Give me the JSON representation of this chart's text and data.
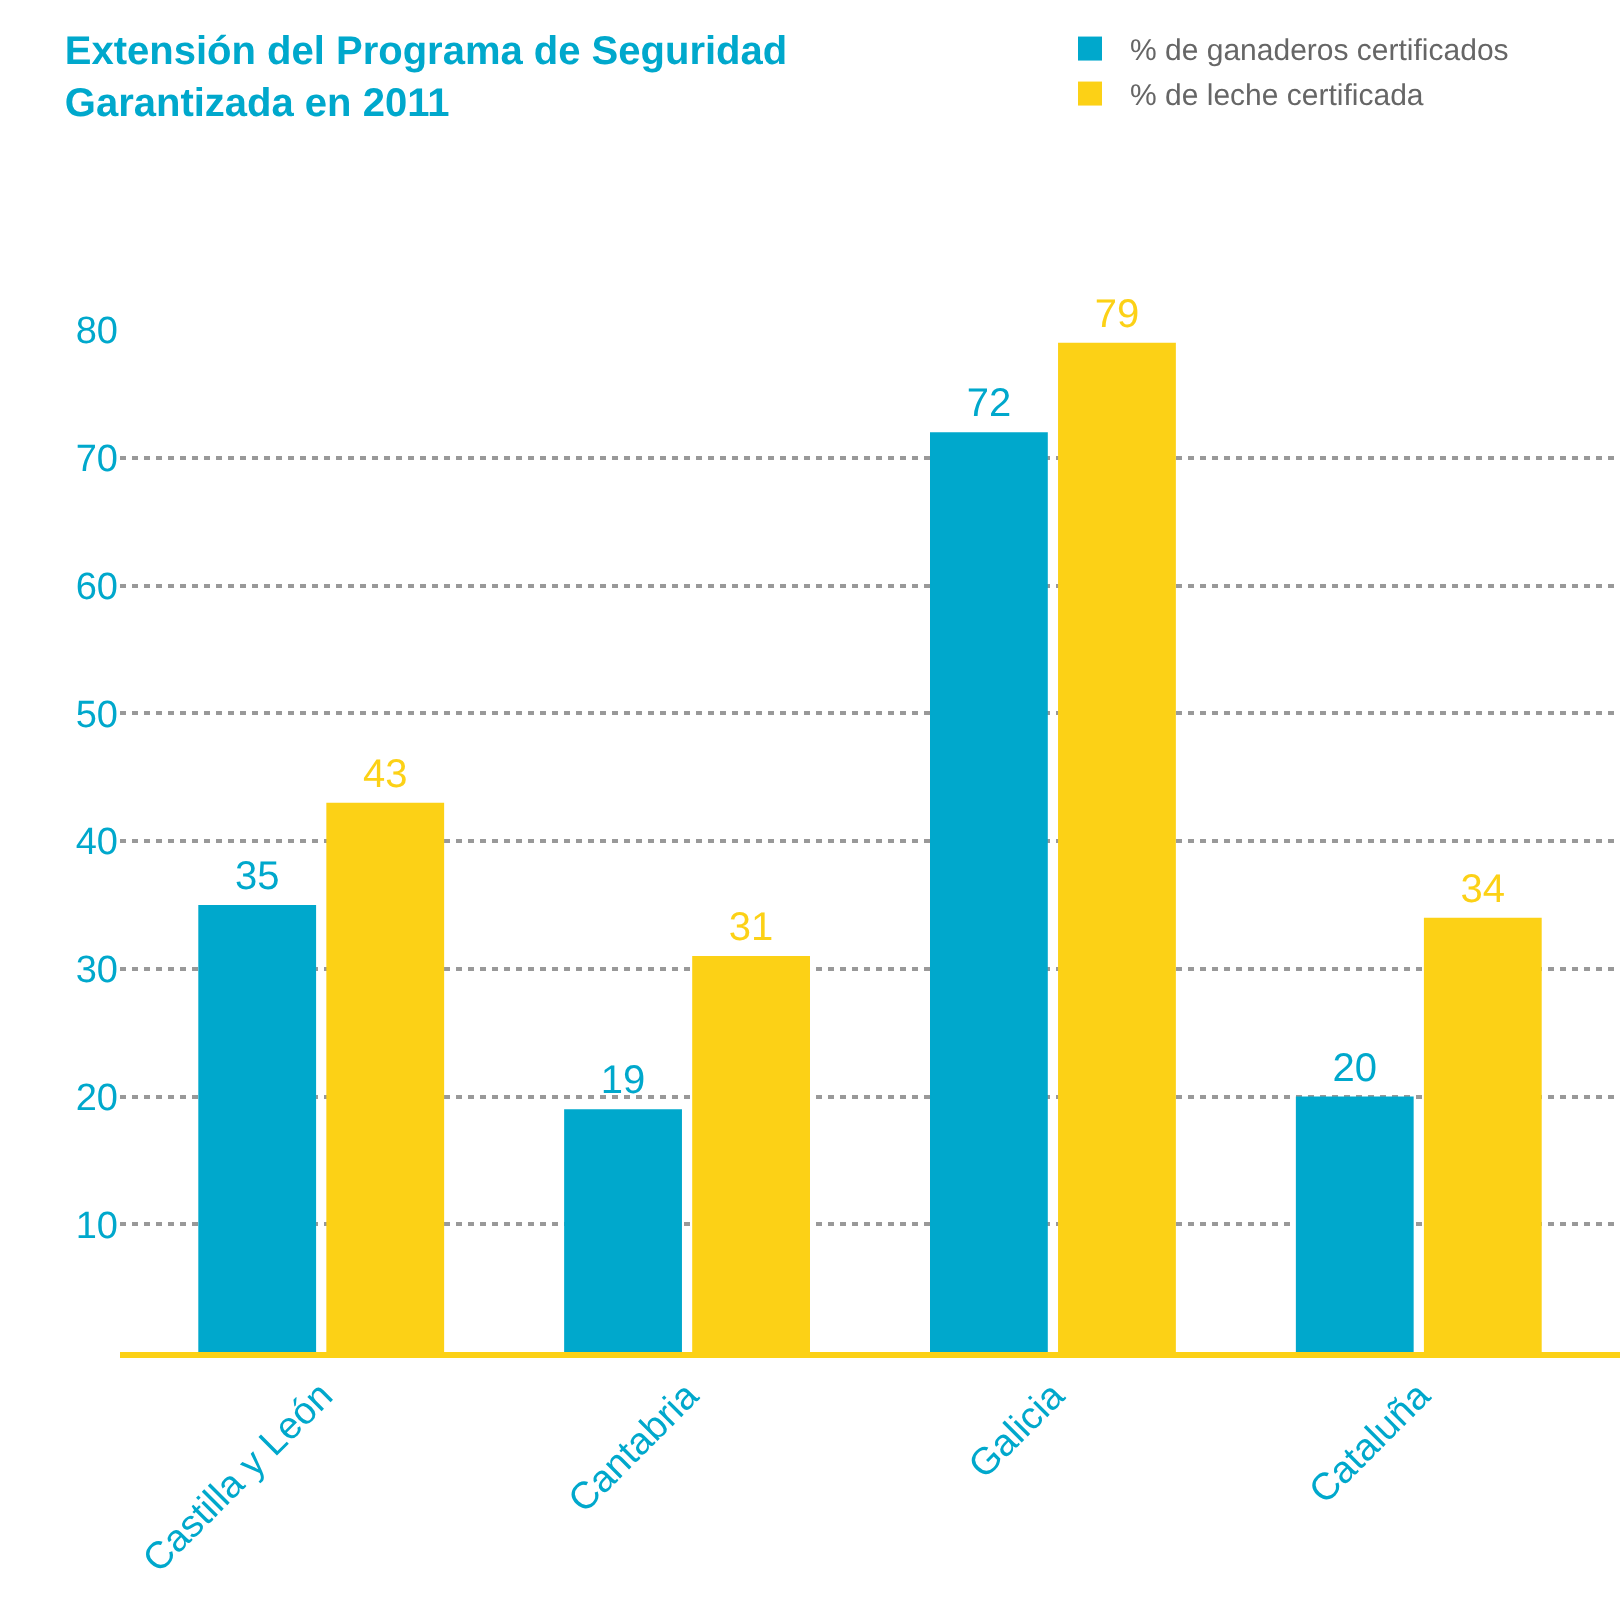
{
  "chart_data": {
    "type": "bar",
    "title": "Extensión del Programa de Seguridad\nGarantizada en 2011",
    "categories": [
      "Castilla y León",
      "Cantabria",
      "Galicia",
      "Cataluña"
    ],
    "series": [
      {
        "name": "% de ganaderos certificados",
        "color": "#00a8cc",
        "values": [
          35,
          19,
          72,
          20
        ]
      },
      {
        "name": "% de leche certificada",
        "color": "#fcd116",
        "values": [
          43,
          31,
          79,
          34
        ]
      }
    ],
    "ylim": [
      0,
      80
    ],
    "yticks": [
      10,
      20,
      30,
      40,
      50,
      60,
      70,
      80
    ],
    "grid": "y",
    "legend": "top right",
    "data_labels": true
  }
}
